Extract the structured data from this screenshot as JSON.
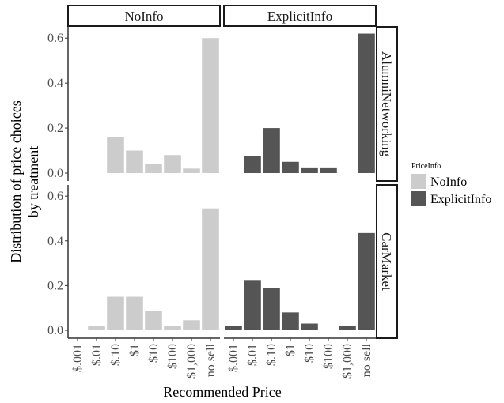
{
  "chart_data": {
    "type": "bar",
    "facets": {
      "columns": [
        "NoInfo",
        "ExplicitInfo"
      ],
      "rows": [
        "AlumniNetworking",
        "CarMarket"
      ]
    },
    "categories": [
      "$.001",
      "$.01",
      "$.10",
      "$1",
      "$10",
      "$100",
      "$1,000",
      "no sell"
    ],
    "xlabel": "Recommended Price",
    "ylabel": [
      "Distribution of price choices",
      "by treatment"
    ],
    "ylim": [
      0,
      0.65
    ],
    "yticks": [
      0.0,
      0.2,
      0.4,
      0.6
    ],
    "ytick_labels": [
      "0.0",
      "0.2",
      "0.4",
      "0.6"
    ],
    "grid": false,
    "legend": {
      "title": "PriceInfo",
      "position": "right",
      "entries": [
        {
          "name": "NoInfo",
          "color": "#cccccc"
        },
        {
          "name": "ExplicitInfo",
          "color": "#555555"
        }
      ]
    },
    "panels": [
      {
        "row": "AlumniNetworking",
        "column": "NoInfo",
        "color": "#cccccc",
        "values": [
          0,
          0,
          0.16,
          0.1,
          0.04,
          0.08,
          0.02,
          0.6
        ]
      },
      {
        "row": "AlumniNetworking",
        "column": "ExplicitInfo",
        "color": "#555555",
        "values": [
          0,
          0.075,
          0.2,
          0.05,
          0.025,
          0.025,
          0,
          0.62
        ]
      },
      {
        "row": "CarMarket",
        "column": "NoInfo",
        "color": "#cccccc",
        "values": [
          0,
          0.02,
          0.15,
          0.15,
          0.085,
          0.02,
          0.045,
          0.545
        ]
      },
      {
        "row": "CarMarket",
        "column": "ExplicitInfo",
        "color": "#555555",
        "values": [
          0.02,
          0.225,
          0.19,
          0.08,
          0.03,
          0,
          0.02,
          0.435
        ]
      }
    ]
  }
}
